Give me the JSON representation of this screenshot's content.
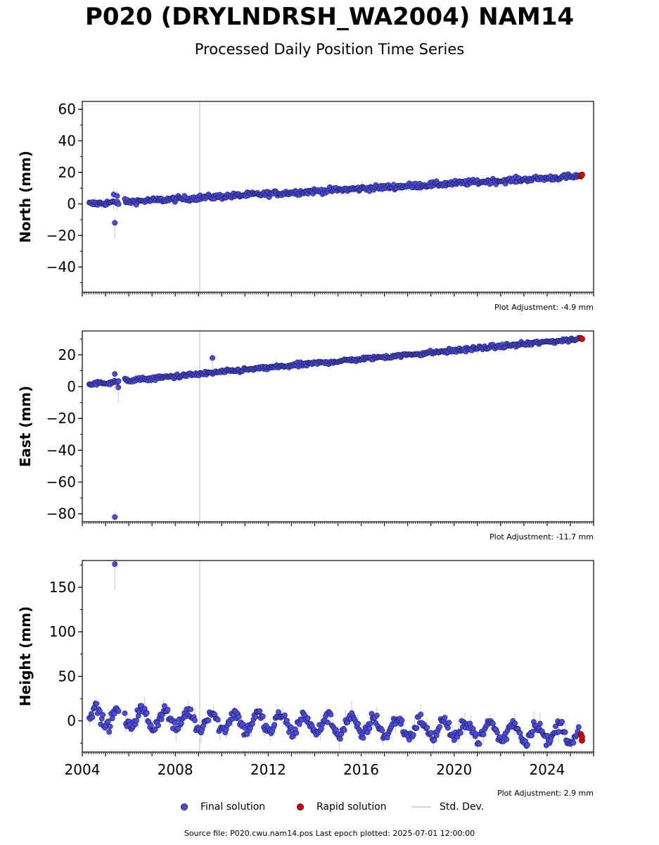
{
  "header": {
    "title": "P020 (DRYLNDRSH_WA2004) NAM14",
    "subtitle": "Processed Daily Position Time Series"
  },
  "colors": {
    "final": "#4b4be8",
    "rapid": "#e00000",
    "stddev": "#d3d3d3"
  },
  "legend": {
    "final": "Final solution",
    "rapid": "Rapid solution",
    "stddev": "Std. Dev."
  },
  "footer": {
    "source": "Source file: P020.cwu.nam14.pos  Last epoch plotted: 2025-07-01 12:00:00"
  },
  "chart_data": [
    {
      "type": "scatter",
      "ylabel": "North (mm)",
      "xlim": [
        2004,
        2026
      ],
      "ylim": [
        -56,
        65
      ],
      "yticks": [
        -40,
        -20,
        0,
        20,
        40,
        60
      ],
      "adjustment": "Plot Adjustment: -4.9 mm",
      "trend": {
        "start": 0,
        "end": 17.5,
        "noise": 1.2
      },
      "outliers": [
        {
          "x": 2005.4,
          "y": -12
        },
        {
          "x": 2005.35,
          "y": 6
        },
        {
          "x": 2005.5,
          "y": 5
        }
      ],
      "rapid": [
        {
          "x": 2025.45,
          "y": 17.5
        },
        {
          "x": 2025.5,
          "y": 18.5
        }
      ]
    },
    {
      "type": "scatter",
      "ylabel": "East (mm)",
      "xlim": [
        2004,
        2026
      ],
      "ylim": [
        -85,
        35
      ],
      "yticks": [
        -80,
        -60,
        -40,
        -20,
        0,
        20
      ],
      "adjustment": "Plot Adjustment: -11.7 mm",
      "trend": {
        "start": 1.5,
        "end": 30,
        "noise": 0.9
      },
      "outliers": [
        {
          "x": 2005.4,
          "y": -82
        },
        {
          "x": 2009.6,
          "y": 18
        },
        {
          "x": 2005.55,
          "y": -0.5
        },
        {
          "x": 2005.4,
          "y": 8
        }
      ],
      "rapid": [
        {
          "x": 2025.45,
          "y": 30.5
        },
        {
          "x": 2025.5,
          "y": 30
        }
      ]
    },
    {
      "type": "scatter",
      "ylabel": "Height (mm)",
      "xlim": [
        2004,
        2026
      ],
      "ylim": [
        -35,
        180
      ],
      "yticks": [
        0,
        50,
        100,
        150
      ],
      "xticks": [
        "2004",
        "2008",
        "2012",
        "2016",
        "2020",
        "2024"
      ],
      "adjustment": "Plot Adjustment: 2.9 mm",
      "trend": {
        "start": 5,
        "end": -15,
        "noise": 5,
        "seasonal": 10
      },
      "outliers": [
        {
          "x": 2005.4,
          "y": 176
        }
      ],
      "rapid": [
        {
          "x": 2025.45,
          "y": -15
        },
        {
          "x": 2025.5,
          "y": -22
        },
        {
          "x": 2025.5,
          "y": -18
        }
      ]
    }
  ]
}
